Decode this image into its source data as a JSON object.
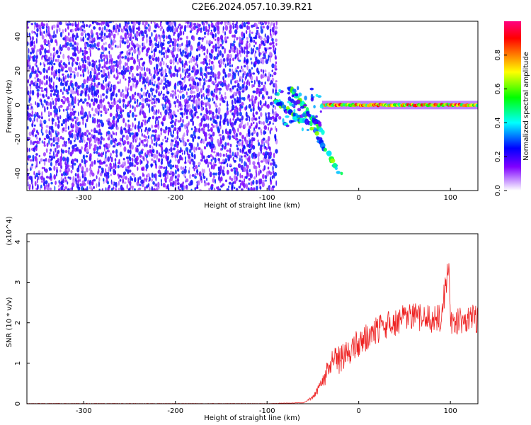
{
  "title": "C2E6.2024.057.10.39.R21",
  "chart_data": [
    {
      "type": "heatmap",
      "xlabel": "Height of straight line (km)",
      "ylabel": "Frequency (Hz)",
      "xlim": [
        -362,
        130
      ],
      "ylim": [
        -50,
        49
      ],
      "x_ticks": [
        -300,
        -200,
        -100,
        0,
        100
      ],
      "y_ticks": [
        -40,
        -20,
        0,
        20,
        40
      ],
      "colorbar": {
        "label": "Normalized spectral amplitude",
        "range": [
          0,
          1
        ],
        "ticks": [
          0.0,
          0.2,
          0.4,
          0.6,
          0.8
        ],
        "tick_labels": [
          "0.0",
          "0.2",
          "0.4",
          "0.6",
          "0.8"
        ],
        "colors": [
          "#ffffff",
          "#d9b8ff",
          "#8000ff",
          "#0000ff",
          "#00ffff",
          "#00ff00",
          "#ffff00",
          "#ff8000",
          "#ff0000",
          "#ff0080"
        ]
      },
      "regions": [
        {
          "x_range": [
            -362,
            -90
          ],
          "freq_range": [
            -50,
            49
          ],
          "amplitude": 0.2
        },
        {
          "x_range": [
            -90,
            -40
          ],
          "freq_range": [
            -15,
            10
          ],
          "amplitude": 0.5
        },
        {
          "x_range": [
            -40,
            130
          ],
          "freq_range": [
            -1,
            1
          ],
          "amplitude": 0.85
        }
      ],
      "features": [
        {
          "x": [
            -90,
            -60
          ],
          "freq": [
            2,
            -10
          ]
        },
        {
          "x": [
            -60,
            -20
          ],
          "freq": [
            -5,
            -40
          ]
        },
        {
          "x": [
            -75,
            -40
          ],
          "freq": [
            10,
            -15
          ]
        }
      ]
    },
    {
      "type": "line",
      "xlabel": "Height of straight line (km)",
      "ylabel": "SNR (10 * v/v)",
      "scale_label": "(x10^4)",
      "xlim": [
        -362,
        130
      ],
      "ylim": [
        0,
        4.2
      ],
      "x_ticks": [
        -300,
        -200,
        -100,
        0,
        100
      ],
      "y_ticks": [
        0,
        1,
        2,
        3,
        4
      ],
      "series": [
        {
          "color": "#ee2222",
          "x": [
            -362,
            -300,
            -200,
            -100,
            -60,
            -50,
            -40,
            -30,
            -20,
            -10,
            0,
            10,
            20,
            30,
            40,
            50,
            60,
            70,
            80,
            90,
            98,
            100,
            110,
            120,
            130
          ],
          "y": [
            0.0,
            0.0,
            0.0,
            0.0,
            0.02,
            0.15,
            0.5,
            1.0,
            1.1,
            1.3,
            1.5,
            1.65,
            1.8,
            1.95,
            2.0,
            2.1,
            2.15,
            2.1,
            2.1,
            2.1,
            3.5,
            2.0,
            2.05,
            2.1,
            2.1
          ]
        }
      ]
    }
  ]
}
